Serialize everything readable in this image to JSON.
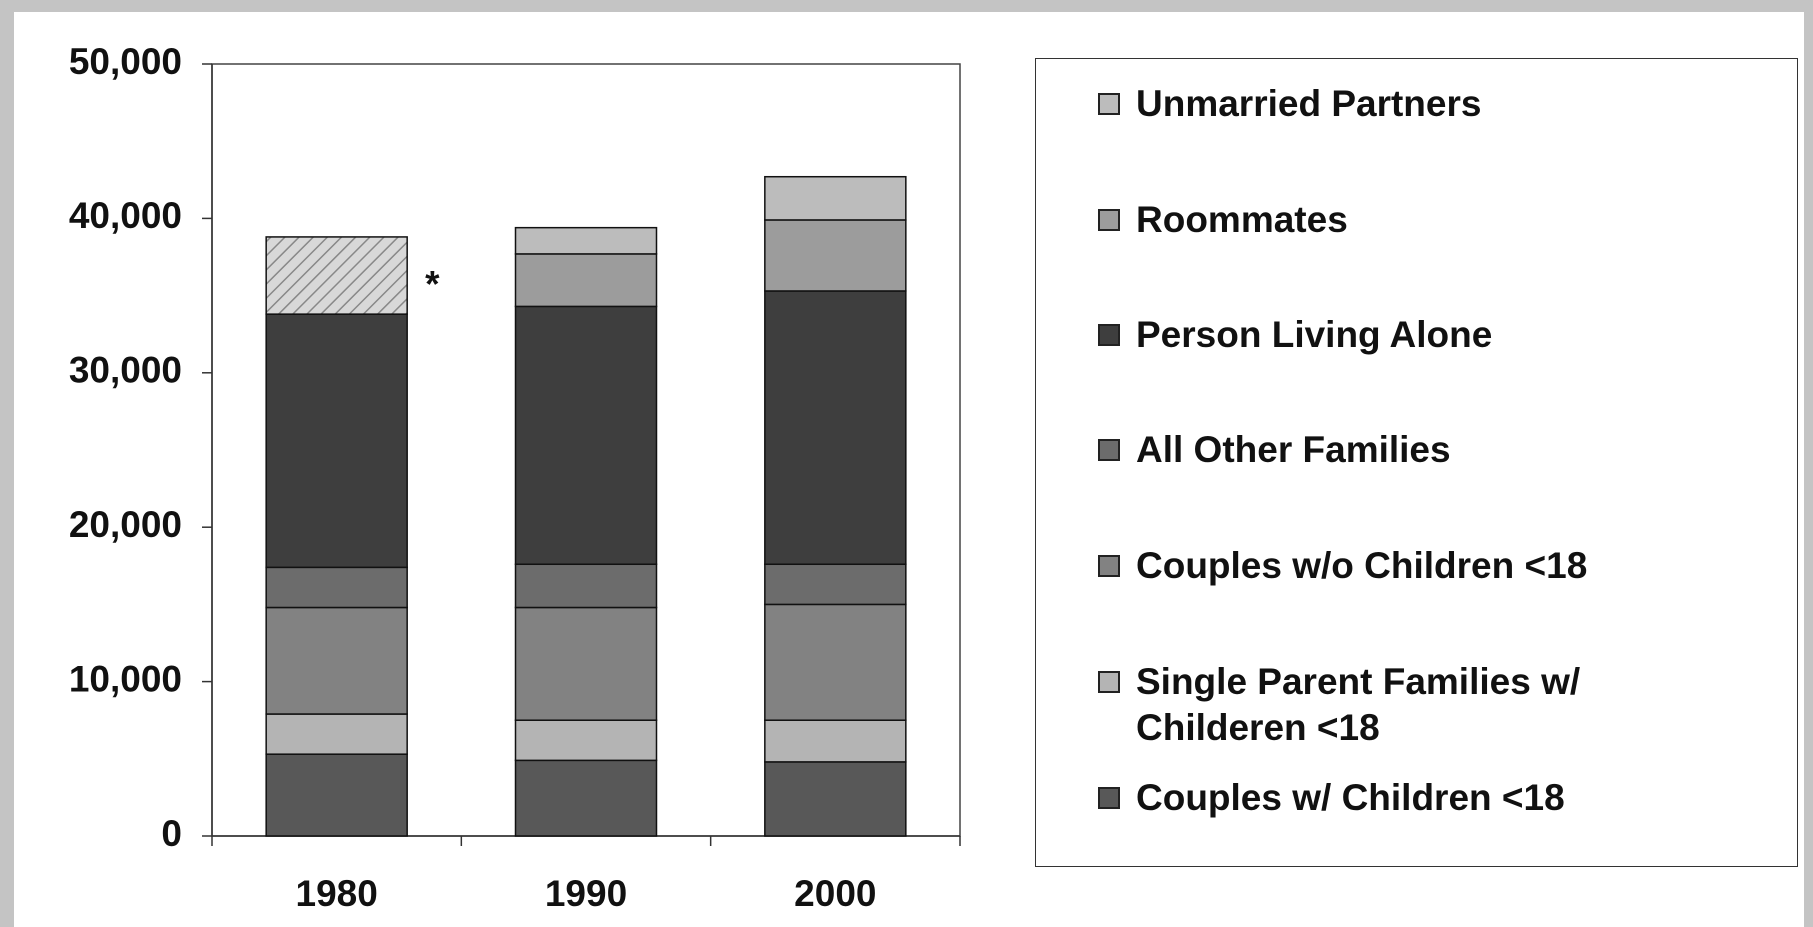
{
  "chart_data": {
    "type": "stacked_bar",
    "categories": [
      "1980",
      "1990",
      "2000"
    ],
    "series": [
      {
        "name": "Couples w/ Children <18",
        "color": "#585858",
        "values": [
          5300,
          4900,
          4800
        ]
      },
      {
        "name": "Single Parent Families w/ Childeren <18",
        "color": "#b4b4b4",
        "values": [
          2600,
          2600,
          2700
        ]
      },
      {
        "name": "Couples w/o Children <18",
        "color": "#828282",
        "values": [
          6900,
          7300,
          7500
        ]
      },
      {
        "name": "All Other Families",
        "color": "#6c6c6c",
        "values": [
          2600,
          2800,
          2600
        ]
      },
      {
        "name": "Person Living Alone",
        "color": "#3e3e3e",
        "values": [
          16400,
          16700,
          17700
        ]
      },
      {
        "name": "Roommates",
        "color": "#9c9c9c",
        "values": [
          5000,
          3400,
          4600
        ],
        "pattern": [
          "hatched",
          null,
          null
        ]
      },
      {
        "name": "Unmarried Partners",
        "color": "#bcbcbc",
        "values": [
          null,
          1700,
          2800
        ]
      }
    ],
    "annotations": [
      "*"
    ],
    "ylim": [
      0,
      50000
    ],
    "yticks": [
      0,
      {
        "value": 10000,
        "label": "10,000"
      },
      {
        "value": 20000,
        "label": "20,000"
      },
      {
        "value": 30000,
        "label": "30,000"
      },
      {
        "value": 40000,
        "label": "40,000"
      },
      {
        "value": 50000,
        "label": "50,000"
      }
    ],
    "legend": "right"
  }
}
